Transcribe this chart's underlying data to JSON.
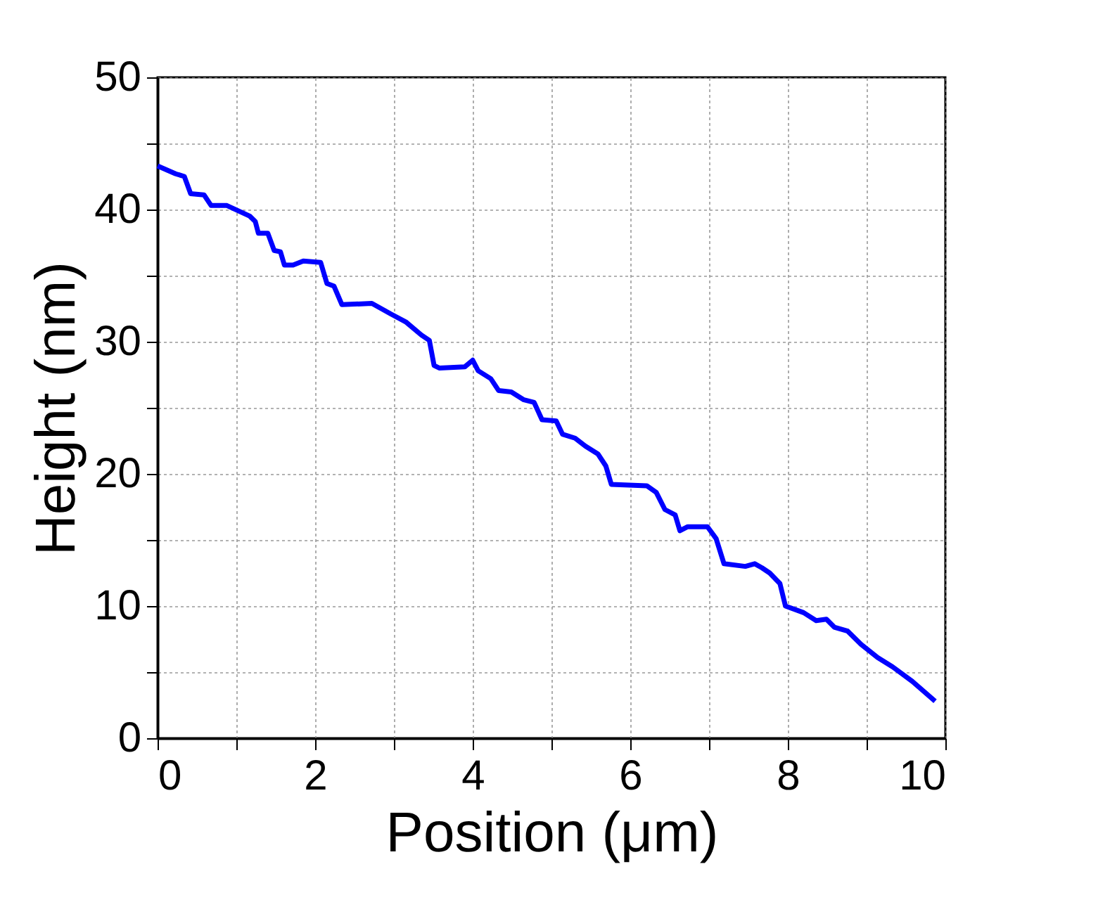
{
  "chart_data": {
    "type": "line",
    "xlabel": "Position (μm)",
    "ylabel": "Height (nm)",
    "xlim": [
      0,
      10
    ],
    "ylim": [
      0,
      50
    ],
    "xticks": [
      0,
      {
        "value": 1,
        "label": null
      },
      2,
      {
        "value": 3,
        "label": null
      },
      4,
      {
        "value": 5,
        "label": null
      },
      6,
      {
        "value": 7,
        "label": null
      },
      8,
      {
        "value": 9,
        "label": null
      },
      10
    ],
    "yticks": [
      0,
      {
        "value": 5,
        "label": null
      },
      10,
      {
        "value": 15,
        "label": null
      },
      20,
      {
        "value": 25,
        "label": null
      },
      30,
      {
        "value": 35,
        "label": null
      },
      40,
      {
        "value": 45,
        "label": null
      },
      50
    ],
    "grid": true,
    "marker": "none",
    "line_style": "solid",
    "series": [
      {
        "color": "#0000ff",
        "x": [
          0,
          0.23,
          0.34,
          0.42,
          0.59,
          0.68,
          0.88,
          1.17,
          1.24,
          1.28,
          1.4,
          1.48,
          1.56,
          1.61,
          1.72,
          1.85,
          2.07,
          2.15,
          2.24,
          2.34,
          2.72,
          2.96,
          3.15,
          3.35,
          3.45,
          3.51,
          3.58,
          3.9,
          4.0,
          4.07,
          4.23,
          4.33,
          4.49,
          4.65,
          4.78,
          4.88,
          5.06,
          5.14,
          5.3,
          5.43,
          5.59,
          5.69,
          5.76,
          6.21,
          6.33,
          6.44,
          6.57,
          6.63,
          6.73,
          6.98,
          7.09,
          7.19,
          7.46,
          7.58,
          7.67,
          7.77,
          7.9,
          7.97,
          8.2,
          8.36,
          8.49,
          8.59,
          8.76,
          8.93,
          9.14,
          9.33,
          9.58,
          9.87
        ],
        "values": [
          43.3,
          42.7,
          42.5,
          41.2,
          41.1,
          40.3,
          40.3,
          39.5,
          39.1,
          38.2,
          38.2,
          36.9,
          36.8,
          35.8,
          35.8,
          36.1,
          36.0,
          34.4,
          34.2,
          32.8,
          32.9,
          32.1,
          31.5,
          30.5,
          30.1,
          28.2,
          28.0,
          28.1,
          28.6,
          27.8,
          27.2,
          26.3,
          26.2,
          25.6,
          25.4,
          24.1,
          24.0,
          23.0,
          22.7,
          22.1,
          21.5,
          20.6,
          19.2,
          19.1,
          18.6,
          17.3,
          16.9,
          15.7,
          16.0,
          16.0,
          15.1,
          13.2,
          13.0,
          13.2,
          12.9,
          12.5,
          11.7,
          10.0,
          9.5,
          8.9,
          9.0,
          8.4,
          8.1,
          7.1,
          6.1,
          5.4,
          4.3,
          2.8
        ]
      }
    ]
  }
}
